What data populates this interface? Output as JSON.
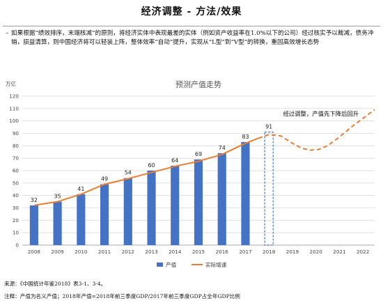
{
  "header": {
    "title": "经济调整 - 方法/效果"
  },
  "description": {
    "bullet": "–",
    "text": "如果根据“绩效排序，末端核减”的原则，将经济实体中表现最差的实体（例如资产收益率在1.0%以下的公司）经过核实予以裁减，债务冲销，损益清算，则中国经济将可以轻装上阵，整体效率“自动”提升，实现从“L型”到“V型”的转换，重回高效增长态势"
  },
  "chart_data": {
    "type": "bar",
    "title": "预测产值走势",
    "unit_label": "万亿",
    "categories": [
      "2008",
      "2009",
      "2010",
      "2011",
      "2012",
      "2013",
      "2014",
      "2015",
      "2016",
      "2017",
      "2018",
      "2019",
      "2020",
      "2021",
      "2022"
    ],
    "values": [
      32,
      35,
      41,
      49,
      54,
      60,
      64,
      69,
      74,
      83,
      91,
      null,
      null,
      null,
      null
    ],
    "forecast_index": 10,
    "ylim": [
      0,
      120
    ],
    "yticks": [
      0,
      10,
      20,
      30,
      40,
      50,
      60,
      70,
      80,
      90,
      100,
      110,
      120
    ],
    "trend_actual": [
      [
        2008,
        32
      ],
      [
        2009,
        35
      ],
      [
        2010,
        41
      ],
      [
        2011,
        49
      ],
      [
        2012,
        53.5
      ],
      [
        2013,
        58.5
      ],
      [
        2014,
        63.5
      ],
      [
        2015,
        67.5
      ],
      [
        2016,
        73
      ],
      [
        2017,
        82
      ],
      [
        2017.55,
        86
      ]
    ],
    "trend_forecast": [
      [
        2017.55,
        86
      ],
      [
        2018,
        89
      ],
      [
        2018.5,
        88
      ],
      [
        2019,
        82
      ],
      [
        2019.4,
        78
      ],
      [
        2019.75,
        76.5
      ],
      [
        2020.1,
        77
      ],
      [
        2020.5,
        80
      ],
      [
        2021,
        87
      ],
      [
        2021.5,
        95
      ],
      [
        2022,
        102
      ],
      [
        2022.5,
        109
      ]
    ],
    "annotation": "经过调整，产值先下降后回升",
    "legend": {
      "position": "bottom",
      "bar_label": "产值",
      "line_label": "实际增速"
    },
    "colors": {
      "bar": "#4472c4",
      "line": "#ed7d31",
      "grid": "#d9d9d9"
    }
  },
  "footer": {
    "source_label": "来源：",
    "source_text": "《中国统计年鉴2018》表3-1、3-4。",
    "note_label": "注释：",
    "note_text": "产值为名义产值；2018年产值=2018年前三季度GDP/2017年前三季度GDP占全年GDP比例"
  }
}
